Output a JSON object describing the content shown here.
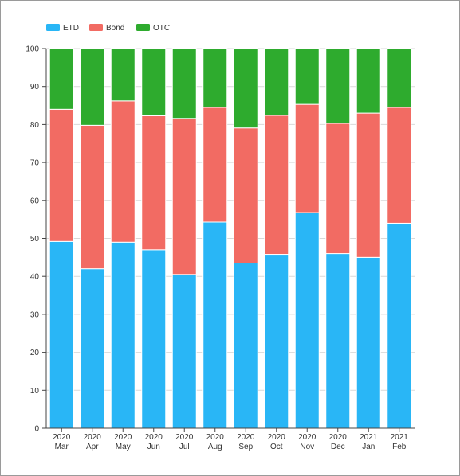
{
  "chart_data": {
    "type": "bar",
    "stacked": true,
    "categories": [
      [
        "2020",
        "Mar"
      ],
      [
        "2020",
        "Apr"
      ],
      [
        "2020",
        "May"
      ],
      [
        "2020",
        "Jun"
      ],
      [
        "2020",
        "Jul"
      ],
      [
        "2020",
        "Aug"
      ],
      [
        "2020",
        "Sep"
      ],
      [
        "2020",
        "Oct"
      ],
      [
        "2020",
        "Nov"
      ],
      [
        "2020",
        "Dec"
      ],
      [
        "2021",
        "Jan"
      ],
      [
        "2021",
        "Feb"
      ]
    ],
    "series": [
      {
        "name": "ETD",
        "color": "#29b6f6",
        "values": [
          49.2,
          42.0,
          49.0,
          47.0,
          40.5,
          54.3,
          43.5,
          45.8,
          56.8,
          46.0,
          45.0,
          54.0
        ]
      },
      {
        "name": "Bond",
        "color": "#f26b63",
        "values": [
          34.8,
          37.8,
          37.2,
          35.3,
          41.1,
          30.2,
          35.6,
          36.6,
          28.5,
          34.3,
          38.0,
          30.5
        ]
      },
      {
        "name": "OTC",
        "color": "#2eab2e",
        "values": [
          16.0,
          20.2,
          13.8,
          17.7,
          18.4,
          15.5,
          20.9,
          17.6,
          14.7,
          19.7,
          17.0,
          15.5
        ]
      }
    ],
    "yticks": [
      "0",
      "10",
      "20",
      "30",
      "40",
      "50",
      "60",
      "70",
      "80",
      "90",
      "100"
    ],
    "ylim": [
      0,
      100
    ],
    "grid": true,
    "legend_position": "top-left"
  }
}
